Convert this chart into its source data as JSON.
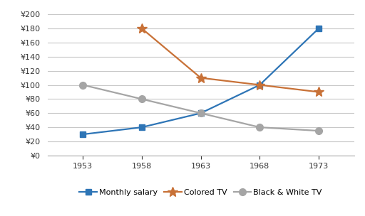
{
  "years": [
    1953,
    1958,
    1963,
    1968,
    1973
  ],
  "monthly_salary": [
    30,
    40,
    60,
    100,
    180
  ],
  "colored_tv": [
    null,
    180,
    110,
    100,
    90
  ],
  "bw_tv": [
    100,
    80,
    60,
    40,
    35
  ],
  "salary_color": "#2E75B6",
  "colored_tv_color": "#C87137",
  "bw_tv_color": "#A5A5A5",
  "ylabel_prefix": "¥",
  "yticks": [
    0,
    20,
    40,
    60,
    80,
    100,
    120,
    140,
    160,
    180,
    200
  ],
  "xticks": [
    1953,
    1958,
    1963,
    1968,
    1973
  ],
  "ylim": [
    0,
    205
  ],
  "xlim": [
    1950,
    1976
  ],
  "legend_labels": [
    "Monthly salary",
    "Colored TV",
    "Black & White TV"
  ],
  "background_color": "#ffffff",
  "grid_color": "#c8c8c8",
  "marker_salary": "s",
  "marker_colored": "*",
  "marker_bw": "o",
  "marker_size_salary": 6,
  "marker_size_colored": 10,
  "marker_size_bw": 7,
  "linewidth": 1.6,
  "tick_fontsize": 8,
  "legend_fontsize": 8
}
